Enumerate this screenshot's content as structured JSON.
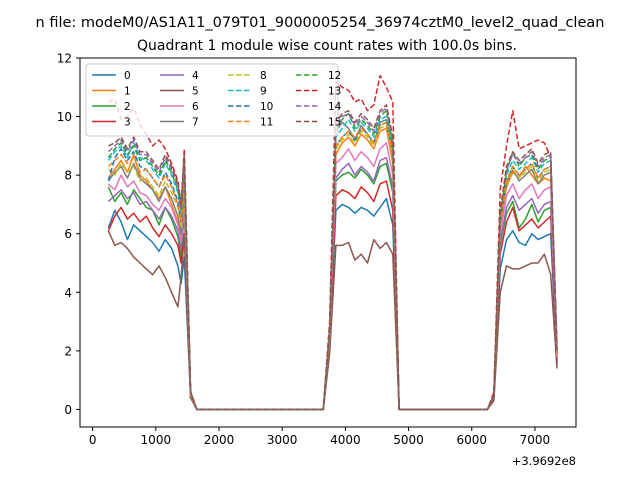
{
  "chart_data": {
    "type": "line",
    "suptitle": "n file: modeM0/AS1A11_079T01_9000005254_36974cztM0_level2_quad_clean",
    "title": "Quadrant 1 module wise count rates with 100.0s bins.",
    "xlabel": "",
    "ylabel": "",
    "x_offset_label": "+3.9692e8",
    "xlim": [
      -200,
      7650
    ],
    "ylim": [
      -0.6,
      12
    ],
    "xticks": [
      0,
      1000,
      2000,
      3000,
      4000,
      5000,
      6000,
      7000
    ],
    "yticks": [
      0,
      2,
      4,
      6,
      8,
      10,
      12
    ],
    "grid": false,
    "legend": {
      "placement": "top-left",
      "columns": 4
    },
    "x": [
      250,
      350,
      450,
      550,
      650,
      750,
      850,
      950,
      1050,
      1150,
      1250,
      1350,
      1400,
      1450,
      1550,
      1650,
      1750,
      3650,
      3750,
      3850,
      3950,
      4050,
      4150,
      4250,
      4350,
      4450,
      4550,
      4650,
      4750,
      4850,
      4950,
      6250,
      6350,
      6450,
      6550,
      6650,
      6750,
      6850,
      6950,
      7050,
      7150,
      7250,
      7350
    ],
    "series": [
      {
        "name": "0",
        "color": "#1f77b4",
        "dash": false,
        "values": [
          6.2,
          6.8,
          6.4,
          5.8,
          6.3,
          6.1,
          5.9,
          5.7,
          5.4,
          5.8,
          5.5,
          4.9,
          4.3,
          5.2,
          0.4,
          0,
          0,
          0,
          2.2,
          6.8,
          7.0,
          6.9,
          6.7,
          6.9,
          6.8,
          6.6,
          6.9,
          7.2,
          6.3,
          0,
          0,
          0,
          0.4,
          4.8,
          5.8,
          6.1,
          5.7,
          5.6,
          6.0,
          5.8,
          5.9,
          6.0,
          1.5
        ]
      },
      {
        "name": "1",
        "color": "#ff7f0e",
        "dash": false,
        "values": [
          7.9,
          8.2,
          8.5,
          8.1,
          8.7,
          8.0,
          7.8,
          7.5,
          7.2,
          7.6,
          7.0,
          6.4,
          5.8,
          7.4,
          0.5,
          0,
          0,
          0,
          2.6,
          8.7,
          9.1,
          9.3,
          9.0,
          9.4,
          9.2,
          8.9,
          9.5,
          9.6,
          8.4,
          0,
          0,
          0,
          0.5,
          6.2,
          7.6,
          8.1,
          7.9,
          8.3,
          8.0,
          7.7,
          7.9,
          7.8,
          1.9
        ]
      },
      {
        "name": "2",
        "color": "#2ca02c",
        "dash": false,
        "values": [
          7.6,
          7.1,
          7.4,
          7.0,
          7.5,
          7.2,
          6.9,
          6.8,
          6.3,
          6.9,
          6.5,
          5.9,
          5.2,
          6.8,
          0.5,
          0,
          0,
          0,
          2.4,
          7.8,
          8.0,
          8.1,
          7.9,
          8.2,
          8.0,
          7.7,
          8.3,
          8.4,
          7.4,
          0,
          0,
          0,
          0.4,
          5.6,
          6.7,
          7.1,
          6.2,
          6.5,
          7.0,
          6.4,
          6.8,
          6.9,
          1.7
        ]
      },
      {
        "name": "3",
        "color": "#d62728",
        "dash": false,
        "values": [
          6.1,
          6.6,
          6.9,
          6.5,
          6.7,
          6.4,
          6.6,
          6.2,
          5.9,
          6.3,
          6.0,
          5.6,
          5.0,
          6.0,
          0.4,
          0,
          0,
          0,
          2.3,
          7.3,
          7.5,
          7.4,
          7.2,
          7.6,
          7.4,
          7.1,
          7.7,
          7.8,
          6.8,
          0,
          0,
          0,
          0.4,
          5.3,
          6.4,
          6.9,
          6.1,
          6.3,
          6.5,
          6.2,
          6.4,
          6.6,
          1.6
        ]
      },
      {
        "name": "4",
        "color": "#9467bd",
        "dash": false,
        "values": [
          7.1,
          7.3,
          7.5,
          7.2,
          7.4,
          7.0,
          7.1,
          6.8,
          6.5,
          6.9,
          6.6,
          6.1,
          5.5,
          6.9,
          0.5,
          0,
          0,
          0,
          2.4,
          7.9,
          8.2,
          8.4,
          8.0,
          8.3,
          8.1,
          7.8,
          8.5,
          8.6,
          7.6,
          0,
          0,
          0,
          0.4,
          5.7,
          6.9,
          7.3,
          6.8,
          7.0,
          7.2,
          6.7,
          7.0,
          7.1,
          1.7
        ]
      },
      {
        "name": "5",
        "color": "#8c564b",
        "dash": false,
        "values": [
          6.1,
          5.6,
          5.7,
          5.5,
          5.2,
          5.0,
          4.8,
          4.6,
          4.9,
          4.5,
          4.0,
          3.5,
          4.5,
          6.0,
          0.4,
          0,
          0,
          0,
          1.9,
          5.6,
          5.6,
          5.7,
          5.1,
          5.3,
          5.0,
          5.8,
          5.5,
          5.7,
          5.3,
          0,
          0,
          0,
          0.3,
          4.0,
          4.9,
          4.8,
          4.8,
          4.9,
          5.0,
          5.0,
          5.3,
          4.6,
          1.4
        ]
      },
      {
        "name": "6",
        "color": "#e377c2",
        "dash": false,
        "values": [
          7.7,
          7.5,
          8.0,
          7.6,
          7.8,
          7.4,
          7.3,
          7.0,
          6.8,
          7.2,
          6.9,
          6.3,
          5.7,
          7.2,
          0.5,
          0,
          0,
          0,
          2.5,
          8.4,
          8.6,
          8.9,
          8.5,
          8.8,
          8.6,
          8.3,
          8.9,
          9.1,
          8.0,
          0,
          0,
          0,
          0.5,
          6.0,
          7.3,
          7.7,
          7.2,
          7.5,
          7.7,
          7.2,
          7.5,
          7.6,
          1.8
        ]
      },
      {
        "name": "7",
        "color": "#7f7f7f",
        "dash": false,
        "values": [
          7.8,
          8.1,
          8.3,
          7.9,
          8.4,
          7.9,
          7.7,
          7.5,
          7.1,
          7.6,
          7.2,
          6.6,
          6.0,
          7.6,
          0.5,
          0,
          0,
          0,
          2.7,
          9.5,
          9.8,
          9.6,
          9.2,
          9.7,
          9.4,
          9.1,
          9.8,
          9.9,
          8.9,
          0,
          0,
          0,
          0.5,
          6.3,
          7.7,
          8.2,
          7.8,
          8.0,
          8.2,
          7.7,
          8.0,
          8.1,
          1.9
        ]
      },
      {
        "name": "8",
        "color": "#bcbd22",
        "dash": true,
        "values": [
          8.2,
          8.0,
          8.4,
          8.1,
          8.3,
          7.8,
          7.9,
          7.6,
          7.3,
          7.8,
          7.4,
          6.9,
          6.2,
          7.8,
          0.5,
          0,
          0,
          0,
          2.6,
          8.9,
          9.2,
          9.4,
          9.1,
          9.5,
          9.3,
          9.0,
          9.6,
          9.7,
          8.6,
          0,
          0,
          0,
          0.5,
          6.3,
          7.7,
          8.2,
          7.9,
          8.1,
          8.3,
          7.8,
          8.1,
          8.2,
          1.9
        ]
      },
      {
        "name": "9",
        "color": "#17becf",
        "dash": true,
        "values": [
          8.5,
          8.8,
          9.0,
          8.6,
          9.1,
          8.6,
          8.5,
          8.2,
          7.9,
          8.4,
          8.0,
          7.4,
          6.7,
          8.4,
          0.6,
          0,
          0,
          0,
          2.7,
          9.3,
          9.6,
          9.9,
          9.5,
          9.8,
          9.6,
          9.3,
          9.9,
          10.0,
          9.0,
          0,
          0,
          0,
          0.5,
          6.6,
          8.0,
          8.5,
          8.2,
          8.4,
          8.6,
          8.1,
          8.4,
          8.5,
          2.0
        ]
      },
      {
        "name": "10",
        "color": "#1f77b4",
        "dash": true,
        "values": [
          7.8,
          8.6,
          8.9,
          8.5,
          8.8,
          8.3,
          8.2,
          7.9,
          7.6,
          8.1,
          7.7,
          7.1,
          6.4,
          8.1,
          0.5,
          0,
          0,
          0,
          2.6,
          9.0,
          9.3,
          9.5,
          9.2,
          9.6,
          9.4,
          9.1,
          9.7,
          9.8,
          8.7,
          0,
          0,
          0,
          0.5,
          6.4,
          7.8,
          8.3,
          8.0,
          8.2,
          8.4,
          7.9,
          8.2,
          8.3,
          1.9
        ]
      },
      {
        "name": "11",
        "color": "#ff7f0e",
        "dash": true,
        "values": [
          8.3,
          8.5,
          8.7,
          8.4,
          8.6,
          8.1,
          8.2,
          7.9,
          7.6,
          8.0,
          7.6,
          7.0,
          6.4,
          8.0,
          0.5,
          0,
          0,
          0,
          2.6,
          9.0,
          9.3,
          9.5,
          9.3,
          9.6,
          9.4,
          9.1,
          9.7,
          9.8,
          8.7,
          0,
          0,
          0,
          0.5,
          6.4,
          7.8,
          8.3,
          8.0,
          8.2,
          8.4,
          7.9,
          8.2,
          8.3,
          1.9
        ]
      },
      {
        "name": "12",
        "color": "#2ca02c",
        "dash": true,
        "values": [
          8.6,
          8.9,
          9.1,
          8.7,
          9.0,
          8.5,
          8.6,
          8.3,
          8.0,
          8.5,
          8.1,
          7.5,
          6.8,
          8.5,
          0.6,
          0,
          0,
          0,
          2.7,
          9.6,
          9.9,
          10.1,
          9.6,
          9.9,
          9.7,
          9.4,
          10.0,
          10.2,
          9.1,
          0,
          0,
          0,
          0.5,
          6.6,
          8.1,
          8.8,
          8.3,
          8.6,
          8.7,
          8.2,
          8.5,
          8.6,
          2.0
        ]
      },
      {
        "name": "13",
        "color": "#d62728",
        "dash": true,
        "values": [
          10.5,
          10.6,
          9.9,
          10.0,
          10.3,
          9.7,
          9.4,
          9.0,
          9.2,
          8.9,
          8.4,
          7.8,
          7.0,
          8.9,
          0.6,
          0,
          0,
          0,
          3.0,
          11.2,
          11.0,
          10.9,
          10.5,
          10.6,
          10.2,
          10.4,
          11.4,
          11.0,
          10.5,
          0,
          0,
          0,
          0.6,
          7.5,
          9.0,
          10.2,
          8.9,
          9.0,
          9.1,
          9.2,
          9.1,
          8.6,
          2.2
        ]
      },
      {
        "name": "14",
        "color": "#9467bd",
        "dash": true,
        "values": [
          8.8,
          9.0,
          9.2,
          8.8,
          9.2,
          8.7,
          8.7,
          8.4,
          8.1,
          8.6,
          8.2,
          7.6,
          6.9,
          8.6,
          0.6,
          0,
          0,
          0,
          2.8,
          9.7,
          10.0,
          10.1,
          9.7,
          10.0,
          9.8,
          9.5,
          10.1,
          10.3,
          9.2,
          0,
          0,
          0,
          0.5,
          6.7,
          8.2,
          8.7,
          8.4,
          8.6,
          8.8,
          8.3,
          8.6,
          8.7,
          2.0
        ]
      },
      {
        "name": "15",
        "color": "#8c564b",
        "dash": true,
        "values": [
          9.0,
          9.1,
          9.3,
          8.9,
          9.3,
          8.8,
          8.8,
          8.5,
          8.2,
          8.7,
          8.3,
          7.7,
          7.0,
          8.7,
          0.6,
          0,
          0,
          0,
          2.8,
          9.8,
          10.1,
          10.2,
          9.8,
          10.1,
          9.9,
          9.6,
          10.2,
          10.4,
          9.3,
          0,
          0,
          0,
          0.5,
          6.8,
          8.3,
          8.8,
          8.5,
          8.7,
          8.9,
          8.4,
          8.7,
          8.8,
          2.0
        ]
      }
    ]
  }
}
